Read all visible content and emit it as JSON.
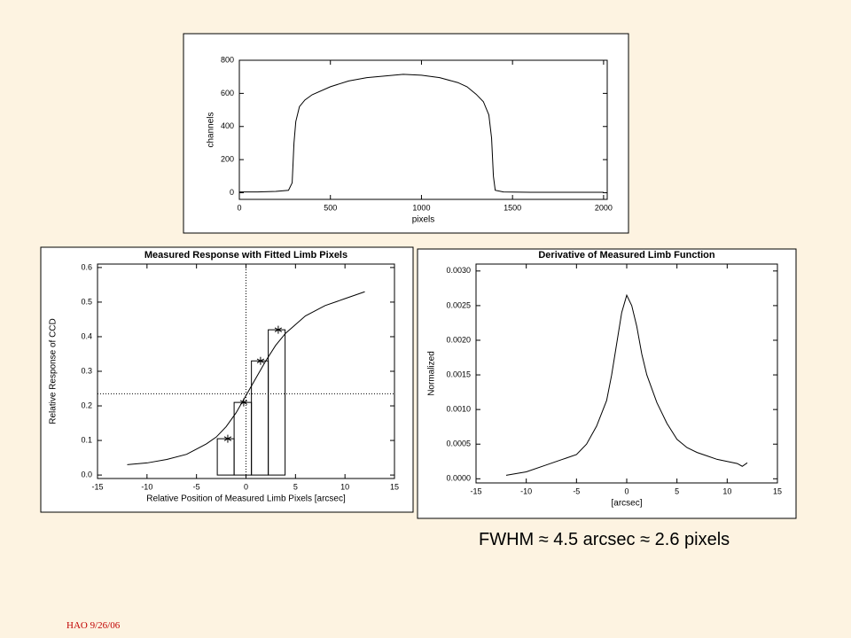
{
  "chart_data": [
    {
      "type": "line",
      "xlabel": "pixels",
      "ylabel": "channels",
      "xlim": [
        0,
        2020
      ],
      "ylim": [
        -40,
        800
      ],
      "xticks": [
        0,
        500,
        1000,
        1500,
        2000
      ],
      "yticks": [
        0,
        200,
        400,
        600,
        800
      ],
      "series": [
        {
          "color": "#000000",
          "x": [
            0,
            100,
            200,
            270,
            290,
            300,
            310,
            330,
            360,
            400,
            500,
            600,
            700,
            800,
            900,
            1000,
            1100,
            1200,
            1250,
            1300,
            1340,
            1370,
            1385,
            1395,
            1405,
            1450,
            1600,
            2000
          ],
          "values": [
            5,
            5,
            8,
            15,
            60,
            300,
            430,
            520,
            560,
            592,
            640,
            675,
            695,
            705,
            715,
            710,
            695,
            665,
            640,
            595,
            550,
            470,
            330,
            100,
            15,
            5,
            3,
            3
          ]
        }
      ]
    },
    {
      "type": "line",
      "title": "Measured Response with Fitted Limb Pixels",
      "xlabel": "Relative Position of Measured Limb Pixels [arcsec]",
      "ylabel": "Relative Response of CCD",
      "xlim": [
        -15,
        15
      ],
      "ylim": [
        -0.01,
        0.61
      ],
      "xticks": [
        -15,
        -10,
        -5,
        0,
        5,
        10,
        15
      ],
      "yticks": [
        {
          "value": 0,
          "label": "0.0"
        },
        0.1,
        0.2,
        0.3,
        0.4,
        0.5,
        0.6
      ],
      "vline": 0,
      "hline": 0.235,
      "series": [
        {
          "color": "#000000",
          "x": [
            -12,
            -10,
            -8,
            -6,
            -4,
            -3,
            -2,
            -1,
            0,
            1,
            2,
            3,
            4,
            6,
            8,
            10,
            12
          ],
          "values": [
            0.03,
            0.035,
            0.045,
            0.06,
            0.09,
            0.11,
            0.14,
            0.18,
            0.23,
            0.28,
            0.33,
            0.375,
            0.41,
            0.46,
            0.49,
            0.51,
            0.53
          ]
        },
        {
          "color": "#000000",
          "bins": [
            -2.9,
            -1.2,
            0.55,
            2.25,
            3.95
          ],
          "values": [
            0.105,
            0.21,
            0.33,
            0.42
          ]
        },
        {
          "color": "#000000",
          "marker": "asterisk",
          "x": [
            -1.84,
            -0.23,
            1.47,
            3.26
          ],
          "values": [
            0.105,
            0.21,
            0.33,
            0.42
          ]
        }
      ]
    },
    {
      "type": "line",
      "title": "Derivative of Measured Limb Function",
      "xlabel": "[arcsec]",
      "ylabel": "Normalized",
      "xlim": [
        -15,
        15
      ],
      "ylim": [
        -6e-05,
        0.0031
      ],
      "xticks": [
        -15,
        -10,
        -5,
        0,
        5,
        10,
        15
      ],
      "yticks": [
        {
          "value": 0,
          "label": "0.0000"
        },
        {
          "value": 0.0005,
          "label": "0.0005"
        },
        {
          "value": 0.001,
          "label": "0.0010"
        },
        {
          "value": 0.0015,
          "label": "0.0015"
        },
        {
          "value": 0.002,
          "label": "0.0020"
        },
        {
          "value": 0.0025,
          "label": "0.0025"
        },
        {
          "value": 0.003,
          "label": "0.0030"
        }
      ],
      "series": [
        {
          "color": "#000000",
          "x": [
            -12,
            -10,
            -8,
            -6,
            -5,
            -4,
            -3,
            -2,
            -1.5,
            -1,
            -0.5,
            0,
            0.5,
            1,
            1.5,
            2,
            3,
            4,
            5,
            6,
            7,
            8,
            9,
            10,
            11,
            11.5,
            12
          ],
          "values": [
            5e-05,
            0.0001,
            0.0002,
            0.0003,
            0.00035,
            0.0005,
            0.00076,
            0.00113,
            0.0015,
            0.00195,
            0.0024,
            0.00265,
            0.0025,
            0.0022,
            0.0018,
            0.0015,
            0.0011,
            0.0008,
            0.00057,
            0.00045,
            0.00038,
            0.00033,
            0.00028,
            0.00025,
            0.00022,
            0.00018,
            0.00023
          ]
        }
      ]
    }
  ],
  "caption": "FWHM ≈ 4.5 arcsec ≈ 2.6 pixels",
  "footer": "HAO 9/26/06"
}
